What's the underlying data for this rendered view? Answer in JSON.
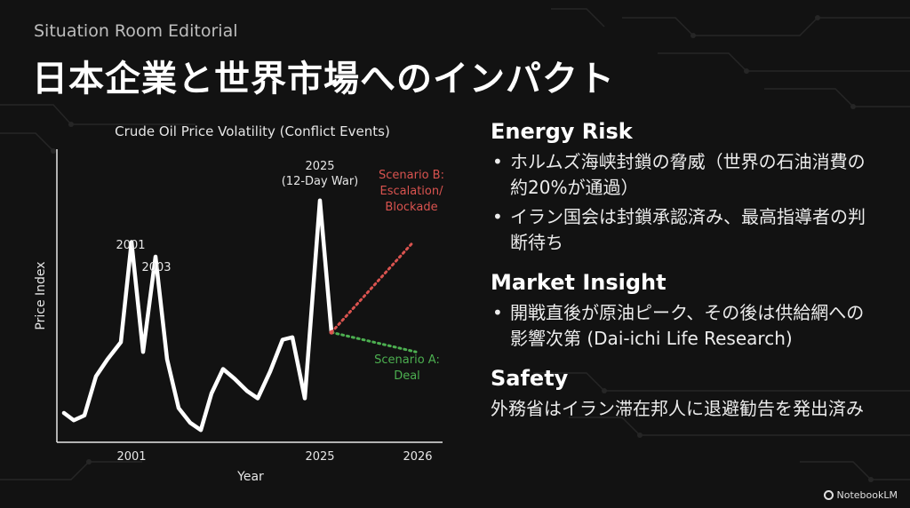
{
  "brand": "Situation Room Editorial",
  "title": "日本企業と世界市場へのインパクト",
  "chart_data": {
    "type": "line",
    "title": "Crude Oil Price Volatility (Conflict Events)",
    "xlabel": "Year",
    "ylabel": "Price Index",
    "x_ticks": [
      "2001",
      "2025",
      "2026"
    ],
    "grid": false,
    "series": [
      {
        "values": [
          12,
          9,
          11,
          27,
          34,
          41,
          82,
          37,
          76,
          34,
          14,
          8,
          5,
          20,
          30,
          26,
          21,
          18,
          29,
          42,
          43,
          18,
          99,
          45
        ]
      },
      {
        "name": "Scenario B: Escalation/ Blockade",
        "values": [
          45,
          82
        ],
        "color": "#d9534f"
      },
      {
        "name": "Scenario A: Deal",
        "values": [
          45,
          37
        ],
        "color": "#4caf50"
      }
    ],
    "annotations": [
      {
        "label": "2001"
      },
      {
        "label": "2003"
      },
      {
        "label": "2025 (12-Day War)"
      }
    ]
  },
  "sections": [
    {
      "title": "Energy Risk",
      "bullets": [
        "ホルムズ海峡封鎖の脅威（世界の石油消費の約20%が通過）",
        "イラン国会は封鎖承認済み、最高指導者の判断待ち"
      ]
    },
    {
      "title": "Market Insight",
      "bullets": [
        "開戦直後が原油ピーク、その後は供給網への影響次第 (Dai-ichi Life Research)"
      ]
    },
    {
      "title": "Safety",
      "text": "外務省はイラン滞在邦人に退避勧告を発出済み"
    }
  ],
  "footer": {
    "logo_text": "NotebookLM"
  },
  "colors": {
    "background": "#121212",
    "line": "#ffffff",
    "scenario_b": "#d9534f",
    "scenario_a": "#4caf50"
  }
}
